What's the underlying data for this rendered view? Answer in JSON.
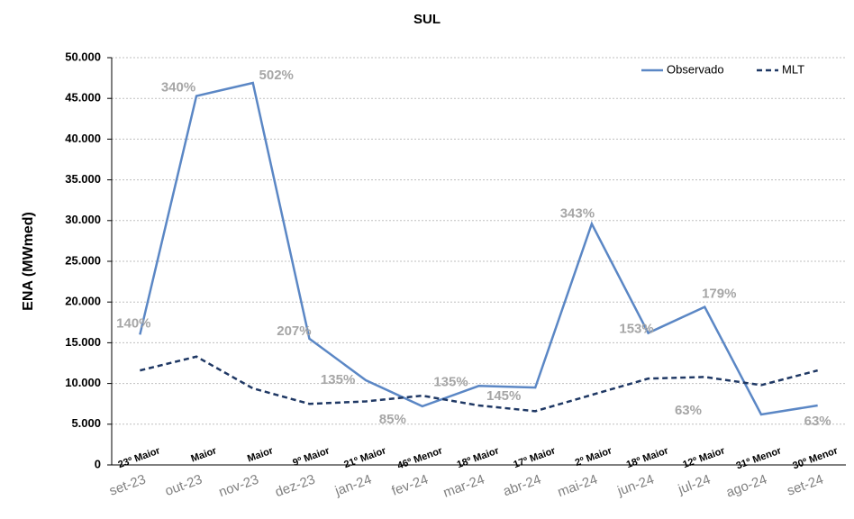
{
  "chart_data": {
    "type": "line",
    "title": "SUL",
    "y_label": "ENA (MWmed)",
    "categories": [
      "set-23",
      "out-23",
      "nov-23",
      "dez-23",
      "jan-24",
      "fev-24",
      "mar-24",
      "abr-24",
      "mai-24",
      "jun-24",
      "jul-24",
      "ago-24",
      "set-24"
    ],
    "rank_labels": [
      "23º Maior",
      "Maior",
      "Maior",
      "9º Maior",
      "21º Maior",
      "46º Menor",
      "18º Maior",
      "17º Maior",
      "2º Maior",
      "18º Maior",
      "12º Maior",
      "31º Menor",
      "30º Menor"
    ],
    "percent_labels": [
      "140%",
      "340%",
      "502%",
      "207%",
      "135%",
      "85%",
      "135%",
      "145%",
      "343%",
      "153%",
      "179%",
      "63%",
      "63%"
    ],
    "series": [
      {
        "name": "Observado",
        "color": "#5b87c5",
        "dashed": false,
        "values": [
          16000,
          45300,
          46900,
          15500,
          10400,
          7200,
          9700,
          9500,
          29600,
          16200,
          19400,
          6200,
          7300
        ]
      },
      {
        "name": "MLT",
        "color": "#1f3864",
        "dashed": true,
        "values": [
          11600,
          13300,
          9400,
          7500,
          7800,
          8500,
          7300,
          6600,
          8600,
          10600,
          10800,
          9800,
          11600
        ]
      }
    ],
    "ylim": [
      0,
      50000
    ],
    "yticks": [
      0,
      {
        "value": 5000,
        "label": "5.000"
      },
      {
        "value": 10000,
        "label": "10.000"
      },
      {
        "value": 15000,
        "label": "15.000"
      },
      {
        "value": 20000,
        "label": "20.000"
      },
      {
        "value": 25000,
        "label": "25.000"
      },
      {
        "value": 30000,
        "label": "30.000"
      },
      {
        "value": 35000,
        "label": "35.000"
      },
      {
        "value": 40000,
        "label": "40.000"
      },
      {
        "value": 45000,
        "label": "45.000"
      },
      {
        "value": 50000,
        "label": "50.000"
      }
    ],
    "grid": true
  }
}
